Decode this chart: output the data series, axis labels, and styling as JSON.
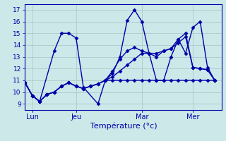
{
  "background_color": "#cce8e8",
  "grid_color": "#aacccc",
  "line_color": "#0000aa",
  "marker_color": "#0000aa",
  "xlabel": "Température (°c)",
  "xlim": [
    0,
    27
  ],
  "ylim": [
    8.5,
    17.5
  ],
  "yticks": [
    9,
    10,
    11,
    12,
    13,
    14,
    15,
    16,
    17
  ],
  "xtick_labels": [
    "Lun",
    "Jeu",
    "Mar",
    "Mer"
  ],
  "xtick_positions": [
    1,
    7,
    16,
    23
  ],
  "series": [
    {
      "x": [
        0,
        1,
        2,
        4,
        5,
        6,
        7,
        8,
        10,
        11,
        12,
        13,
        14,
        15,
        16,
        17,
        18,
        19,
        20,
        21,
        22,
        23,
        24,
        25,
        26
      ],
      "y": [
        10.8,
        9.7,
        9.2,
        13.5,
        15.0,
        15.0,
        14.6,
        10.4,
        9.0,
        11.0,
        11.6,
        13.0,
        16.1,
        17.0,
        16.0,
        13.3,
        11.0,
        11.0,
        13.0,
        14.5,
        13.3,
        15.5,
        16.0,
        12.1,
        11.0
      ]
    },
    {
      "x": [
        0,
        1,
        2,
        3,
        4,
        5,
        6,
        7,
        8,
        9,
        10,
        11,
        12,
        13,
        14,
        15,
        16,
        17,
        18,
        19,
        20,
        21,
        22,
        23,
        24,
        25,
        26
      ],
      "y": [
        10.8,
        9.7,
        9.2,
        9.8,
        10.0,
        10.5,
        10.8,
        10.5,
        10.3,
        10.5,
        10.7,
        11.0,
        11.0,
        11.0,
        11.0,
        11.0,
        11.0,
        11.0,
        11.0,
        11.0,
        11.0,
        11.0,
        11.0,
        11.0,
        11.0,
        11.0,
        11.0
      ]
    },
    {
      "x": [
        0,
        1,
        2,
        3,
        4,
        5,
        6,
        7,
        8,
        9,
        10,
        11,
        12,
        13,
        14,
        15,
        16,
        17,
        18,
        19,
        20,
        21,
        22,
        23,
        24,
        25,
        26
      ],
      "y": [
        10.8,
        9.7,
        9.2,
        9.8,
        10.0,
        10.5,
        10.8,
        10.5,
        10.3,
        10.5,
        10.7,
        11.0,
        11.3,
        11.8,
        12.3,
        12.8,
        13.3,
        13.3,
        13.3,
        13.5,
        13.7,
        14.2,
        14.7,
        12.1,
        12.0,
        11.9,
        11.0
      ]
    },
    {
      "x": [
        0,
        1,
        2,
        3,
        4,
        5,
        6,
        7,
        8,
        9,
        10,
        11,
        12,
        13,
        14,
        15,
        16,
        17,
        18,
        19,
        20,
        21,
        22,
        23,
        24,
        25,
        26
      ],
      "y": [
        10.8,
        9.7,
        9.2,
        9.8,
        10.0,
        10.5,
        10.8,
        10.5,
        10.3,
        10.5,
        10.7,
        11.0,
        11.8,
        12.8,
        13.5,
        13.8,
        13.5,
        13.3,
        13.0,
        13.5,
        13.7,
        14.5,
        15.0,
        12.1,
        12.0,
        11.9,
        11.0
      ]
    }
  ],
  "figsize": [
    3.2,
    2.0
  ],
  "dpi": 100,
  "title_color": "#000088",
  "marker_size": 2.5,
  "line_width": 1.0
}
